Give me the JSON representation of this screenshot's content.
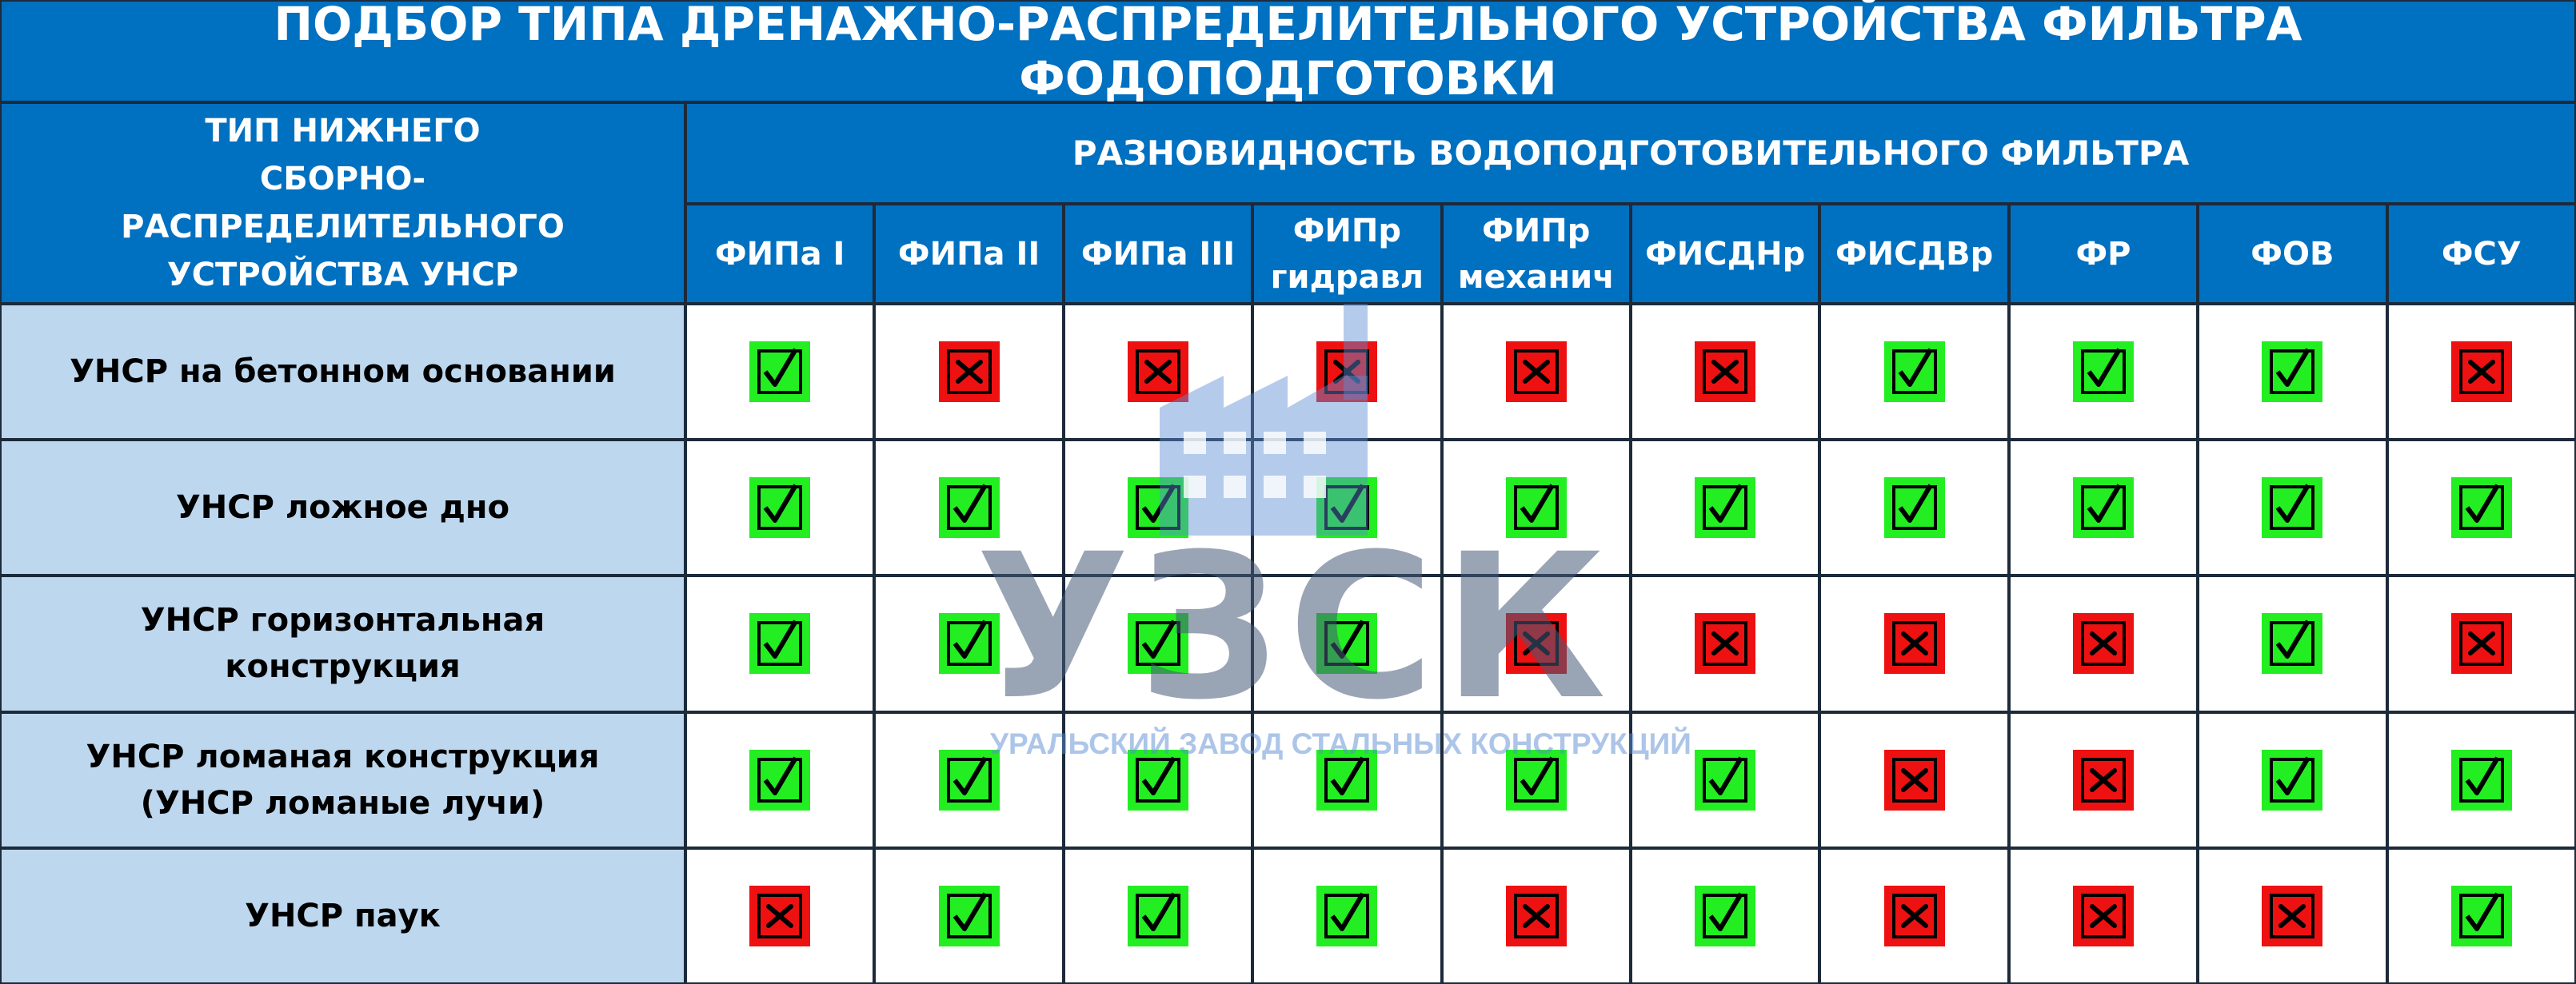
{
  "title": "ПОДБОР ТИПА ДРЕНАЖНО-РАСПРЕДЕЛИТЕЛЬНОГО УСТРОЙСТВА ФИЛЬТРА ФОДОПОДГОТОВКИ",
  "table": {
    "row_header": "ТИП НИЖНЕГО СБОРНО-РАСПРЕДЕЛИТЕЛЬНОГО УСТРОЙСТВА УНСР",
    "group_header": "РАЗНОВИДНОСТЬ ВОДОПОДГОТОВИТЕЛЬНОГО ФИЛЬТРА",
    "columns": [
      "ФИПа I",
      "ФИПа II",
      "ФИПа III",
      "ФИПр\nгидравл",
      "ФИПр\nмеханич",
      "ФИСДНр",
      "ФИСДВр",
      "ФР",
      "ФОВ",
      "ФСУ"
    ],
    "rows": [
      {
        "label": "УНСР на бетонном основании",
        "cells": [
          true,
          false,
          false,
          false,
          false,
          false,
          true,
          true,
          true,
          false
        ]
      },
      {
        "label": "УНСР ложное дно",
        "cells": [
          true,
          true,
          true,
          true,
          true,
          true,
          true,
          true,
          true,
          true
        ]
      },
      {
        "label": "УНСР горизонтальная конструкция",
        "cells": [
          true,
          true,
          true,
          true,
          false,
          false,
          false,
          false,
          true,
          false
        ]
      },
      {
        "label": "УНСР ломаная конструкция\n(УНСР ломаные лучи)",
        "cells": [
          true,
          true,
          true,
          true,
          true,
          true,
          false,
          false,
          true,
          true
        ]
      },
      {
        "label": "УНСР паук",
        "cells": [
          false,
          true,
          true,
          true,
          false,
          true,
          false,
          false,
          false,
          true
        ]
      }
    ]
  },
  "watermark": {
    "logo": "УЗСК",
    "caption": "УРАЛЬСКИЙ ЗАВОД СТАЛЬНЫХ КОНСТРУКЦИЙ"
  }
}
